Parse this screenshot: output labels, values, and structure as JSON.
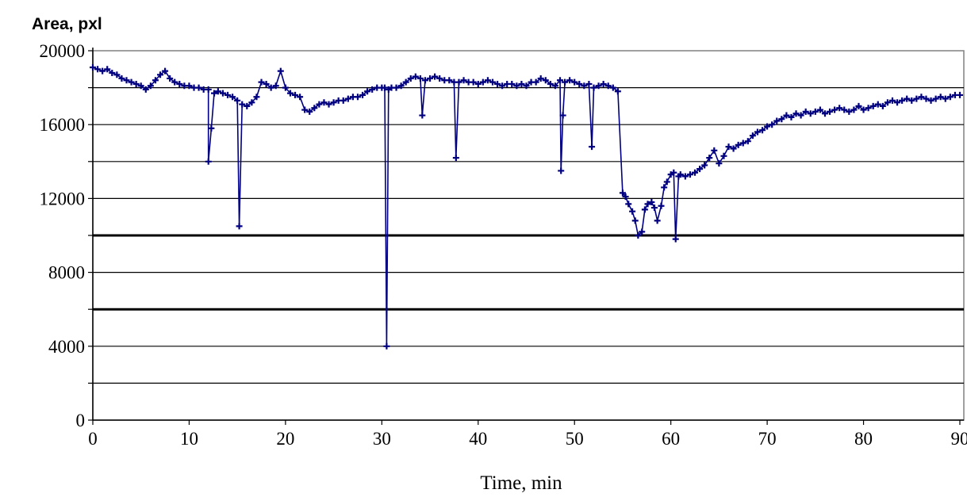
{
  "chart_data": {
    "type": "scatter",
    "title": "",
    "ylabel": "Area, pxl",
    "xlabel": "Time, min",
    "xlim": [
      0,
      90
    ],
    "ylim": [
      0,
      20000
    ],
    "x_ticks": [
      0,
      10,
      20,
      30,
      40,
      50,
      60,
      70,
      80,
      90
    ],
    "y_ticks": [
      0,
      4000,
      8000,
      12000,
      16000,
      20000
    ],
    "gridlines_y": [
      2000,
      4000,
      6000,
      8000,
      10000,
      12000,
      14000,
      16000,
      18000
    ],
    "emphasized_gridlines_y": [
      6000,
      10000
    ],
    "grid": true,
    "legend": "none",
    "series_color": "#000080",
    "series": [
      {
        "points": [
          [
            0,
            19100
          ],
          [
            0.5,
            19000
          ],
          [
            1,
            18900
          ],
          [
            1.5,
            19000
          ],
          [
            2,
            18800
          ],
          [
            2.5,
            18700
          ],
          [
            3,
            18500
          ],
          [
            3.5,
            18400
          ],
          [
            4,
            18300
          ],
          [
            4.5,
            18200
          ],
          [
            5,
            18100
          ],
          [
            5.5,
            17900
          ],
          [
            6,
            18100
          ],
          [
            6.5,
            18400
          ],
          [
            7,
            18700
          ],
          [
            7.5,
            18900
          ],
          [
            8,
            18500
          ],
          [
            8.5,
            18300
          ],
          [
            9,
            18200
          ],
          [
            9.5,
            18100
          ],
          [
            10,
            18100
          ],
          [
            10.5,
            18000
          ],
          [
            11,
            18000
          ],
          [
            11.5,
            17900
          ],
          [
            12,
            17900
          ],
          [
            12,
            14000
          ],
          [
            12.3,
            15800
          ],
          [
            12.6,
            17700
          ],
          [
            13,
            17800
          ],
          [
            13.5,
            17700
          ],
          [
            14,
            17600
          ],
          [
            14.5,
            17500
          ],
          [
            15,
            17300
          ],
          [
            15.2,
            10500
          ],
          [
            15.5,
            17100
          ],
          [
            16,
            17000
          ],
          [
            16.5,
            17200
          ],
          [
            17,
            17500
          ],
          [
            17.5,
            18300
          ],
          [
            18,
            18200
          ],
          [
            18.5,
            18000
          ],
          [
            19,
            18100
          ],
          [
            19.5,
            18900
          ],
          [
            20,
            18000
          ],
          [
            20.5,
            17700
          ],
          [
            21,
            17600
          ],
          [
            21.5,
            17500
          ],
          [
            22,
            16800
          ],
          [
            22.5,
            16700
          ],
          [
            23,
            16900
          ],
          [
            23.5,
            17100
          ],
          [
            24,
            17200
          ],
          [
            24.5,
            17100
          ],
          [
            25,
            17200
          ],
          [
            25.5,
            17300
          ],
          [
            26,
            17300
          ],
          [
            26.5,
            17400
          ],
          [
            27,
            17500
          ],
          [
            27.5,
            17500
          ],
          [
            28,
            17600
          ],
          [
            28.5,
            17800
          ],
          [
            29,
            17900
          ],
          [
            29.5,
            18000
          ],
          [
            30,
            18000
          ],
          [
            30.3,
            18000
          ],
          [
            30.5,
            4000
          ],
          [
            30.7,
            17900
          ],
          [
            31,
            18000
          ],
          [
            31.5,
            18000
          ],
          [
            32,
            18100
          ],
          [
            32.5,
            18300
          ],
          [
            33,
            18500
          ],
          [
            33.5,
            18600
          ],
          [
            34,
            18500
          ],
          [
            34.2,
            16500
          ],
          [
            34.5,
            18400
          ],
          [
            35,
            18500
          ],
          [
            35.5,
            18600
          ],
          [
            36,
            18500
          ],
          [
            36.5,
            18400
          ],
          [
            37,
            18400
          ],
          [
            37.5,
            18300
          ],
          [
            37.7,
            14200
          ],
          [
            38,
            18300
          ],
          [
            38.5,
            18400
          ],
          [
            39,
            18300
          ],
          [
            39.5,
            18300
          ],
          [
            40,
            18200
          ],
          [
            40.5,
            18300
          ],
          [
            41,
            18400
          ],
          [
            41.5,
            18300
          ],
          [
            42,
            18200
          ],
          [
            42.5,
            18100
          ],
          [
            43,
            18200
          ],
          [
            43.5,
            18200
          ],
          [
            44,
            18100
          ],
          [
            44.5,
            18200
          ],
          [
            45,
            18100
          ],
          [
            45.5,
            18300
          ],
          [
            46,
            18300
          ],
          [
            46.5,
            18500
          ],
          [
            47,
            18400
          ],
          [
            47.5,
            18200
          ],
          [
            48,
            18100
          ],
          [
            48.5,
            18400
          ],
          [
            48.6,
            13500
          ],
          [
            48.8,
            16500
          ],
          [
            49,
            18300
          ],
          [
            49.5,
            18400
          ],
          [
            50,
            18300
          ],
          [
            50.5,
            18200
          ],
          [
            51,
            18100
          ],
          [
            51.5,
            18200
          ],
          [
            51.8,
            14800
          ],
          [
            52,
            18000
          ],
          [
            52.5,
            18100
          ],
          [
            53,
            18200
          ],
          [
            53.5,
            18100
          ],
          [
            54,
            18000
          ],
          [
            54.5,
            17800
          ],
          [
            55,
            12300
          ],
          [
            55.3,
            12100
          ],
          [
            55.6,
            11700
          ],
          [
            56,
            11300
          ],
          [
            56.3,
            10800
          ],
          [
            56.6,
            10000
          ],
          [
            57,
            10200
          ],
          [
            57.3,
            11400
          ],
          [
            57.6,
            11700
          ],
          [
            58,
            11800
          ],
          [
            58.3,
            11500
          ],
          [
            58.6,
            10800
          ],
          [
            59,
            11600
          ],
          [
            59.3,
            12600
          ],
          [
            59.6,
            12900
          ],
          [
            60,
            13300
          ],
          [
            60.3,
            13400
          ],
          [
            60.5,
            9800
          ],
          [
            60.8,
            13200
          ],
          [
            61,
            13300
          ],
          [
            61.5,
            13200
          ],
          [
            62,
            13300
          ],
          [
            62.5,
            13400
          ],
          [
            63,
            13600
          ],
          [
            63.5,
            13800
          ],
          [
            64,
            14200
          ],
          [
            64.5,
            14600
          ],
          [
            65,
            13900
          ],
          [
            65.5,
            14300
          ],
          [
            66,
            14800
          ],
          [
            66.5,
            14700
          ],
          [
            67,
            14900
          ],
          [
            67.5,
            15000
          ],
          [
            68,
            15100
          ],
          [
            68.5,
            15400
          ],
          [
            69,
            15600
          ],
          [
            69.5,
            15700
          ],
          [
            70,
            15900
          ],
          [
            70.5,
            16000
          ],
          [
            71,
            16200
          ],
          [
            71.5,
            16300
          ],
          [
            72,
            16500
          ],
          [
            72.5,
            16400
          ],
          [
            73,
            16600
          ],
          [
            73.5,
            16500
          ],
          [
            74,
            16700
          ],
          [
            74.5,
            16600
          ],
          [
            75,
            16700
          ],
          [
            75.5,
            16800
          ],
          [
            76,
            16600
          ],
          [
            76.5,
            16700
          ],
          [
            77,
            16800
          ],
          [
            77.5,
            16900
          ],
          [
            78,
            16800
          ],
          [
            78.5,
            16700
          ],
          [
            79,
            16800
          ],
          [
            79.5,
            17000
          ],
          [
            80,
            16800
          ],
          [
            80.5,
            16900
          ],
          [
            81,
            17000
          ],
          [
            81.5,
            17100
          ],
          [
            82,
            17000
          ],
          [
            82.5,
            17200
          ],
          [
            83,
            17300
          ],
          [
            83.5,
            17200
          ],
          [
            84,
            17300
          ],
          [
            84.5,
            17400
          ],
          [
            85,
            17300
          ],
          [
            85.5,
            17400
          ],
          [
            86,
            17500
          ],
          [
            86.5,
            17400
          ],
          [
            87,
            17300
          ],
          [
            87.5,
            17400
          ],
          [
            88,
            17500
          ],
          [
            88.5,
            17400
          ],
          [
            89,
            17500
          ],
          [
            89.5,
            17600
          ],
          [
            90,
            17600
          ]
        ]
      }
    ]
  }
}
